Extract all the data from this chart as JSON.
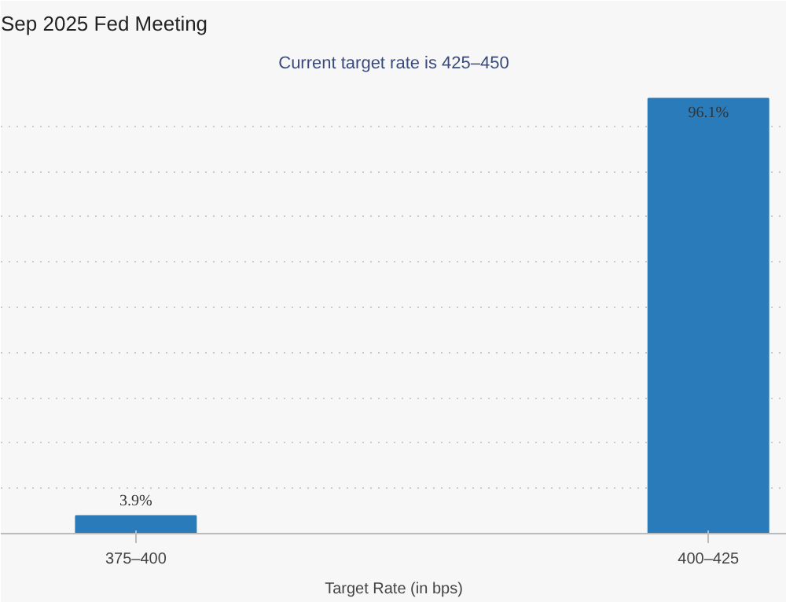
{
  "chart_data": {
    "type": "bar",
    "title": "Sep 2025 Fed Meeting",
    "subtitle": "Current target rate is 425–450",
    "xlabel": "Target Rate (in bps)",
    "categories": [
      "375–400",
      "400–425"
    ],
    "values": [
      3.9,
      96.1
    ],
    "value_labels": [
      "3.9%",
      "96.1%"
    ],
    "color": "#2a7bb9",
    "ylim": [
      0,
      100
    ],
    "yticks": [
      {
        "value": 0,
        "label": null
      },
      {
        "value": 10,
        "label": null
      },
      {
        "value": 20,
        "label": null
      },
      {
        "value": 30,
        "label": null
      },
      {
        "value": 40,
        "label": null
      },
      {
        "value": 50,
        "label": null
      },
      {
        "value": 60,
        "label": null
      },
      {
        "value": 70,
        "label": null
      },
      {
        "value": 80,
        "label": null
      },
      {
        "value": 90,
        "label": null
      },
      {
        "value": 100,
        "label": null
      }
    ],
    "tick_labels": "x",
    "grid": "y"
  }
}
